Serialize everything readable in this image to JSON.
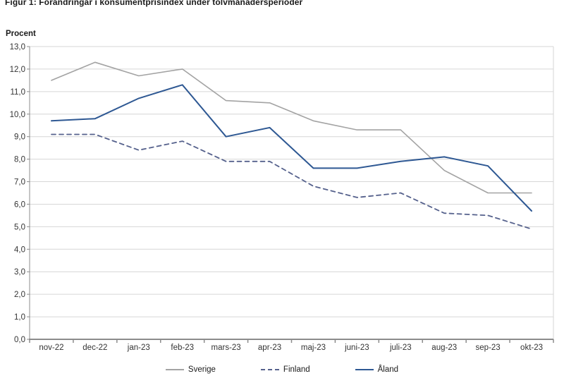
{
  "page": {
    "background": "#ffffff"
  },
  "chart_data": {
    "type": "line",
    "title": "Figur 1: Förändringar i konsumentprisindex under tolvmånadersperioder",
    "y_axis_label": "Procent",
    "categories": [
      "nov-22",
      "dec-22",
      "jan-23",
      "feb-23",
      "mars-23",
      "apr-23",
      "maj-23",
      "juni-23",
      "juli-23",
      "aug-23",
      "sep-23",
      "okt-23"
    ],
    "series": [
      {
        "name": "Sverige",
        "line_style": "solid",
        "color": "#A3A3A3",
        "width": 1.6,
        "values": [
          11.5,
          12.3,
          11.7,
          12.0,
          10.6,
          10.5,
          9.7,
          9.3,
          9.3,
          7.5,
          6.5,
          6.5
        ]
      },
      {
        "name": "Finland",
        "line_style": "dashed",
        "color": "#55618C",
        "width": 1.8,
        "values": [
          9.1,
          9.1,
          8.4,
          8.8,
          7.9,
          7.9,
          6.8,
          6.3,
          6.5,
          5.6,
          5.5,
          4.9
        ]
      },
      {
        "name": "Åland",
        "line_style": "solid",
        "color": "#2E5893",
        "width": 2.0,
        "values": [
          9.7,
          9.8,
          10.7,
          11.3,
          9.0,
          9.4,
          7.6,
          7.6,
          7.9,
          8.1,
          7.7,
          5.7
        ]
      }
    ],
    "ylim": [
      0,
      13
    ],
    "y_tick_step": 1.0,
    "y_tick_labels": [
      "0,0",
      "1,0",
      "2,0",
      "3,0",
      "4,0",
      "5,0",
      "6,0",
      "7,0",
      "8,0",
      "9,0",
      "10,0",
      "11,0",
      "12,0",
      "13,0"
    ],
    "grid": true,
    "legend_position": "bottom"
  },
  "colors": {
    "gridline": "#D6D6D6",
    "plot_border": "#D6D6D6",
    "axis_line": "#8C8C8C",
    "tick": "#8C8C8C",
    "axis_text": "#333333"
  }
}
